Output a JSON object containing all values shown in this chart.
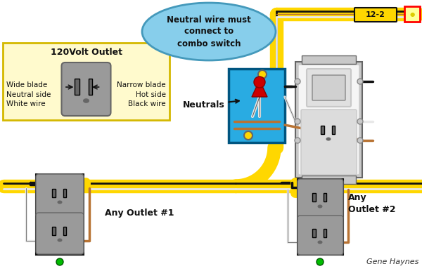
{
  "bg_color": "#ffffff",
  "legend_box_color": "#fffacd",
  "legend_box_title": "120Volt Outlet",
  "callout_text": "Neutral wire must\nconnect to\ncombo switch",
  "neutrals_label": "Neutrals",
  "wire_12_2_label": "12-2",
  "outlet1_label": "Any Outlet #1",
  "outlet2_label": "Any\nOutlet #2",
  "credit": "Gene Haynes",
  "yellow": "#FFD700",
  "black": "#111111",
  "white_wire": "#e8e8e8",
  "copper": "#B87333",
  "red_cap": "#CC0000",
  "blue_box": "#29ABE2",
  "gray": "#888888",
  "dark_gray": "#666666",
  "light_gray": "#C8C8C8",
  "outlet_gray": "#9A9A9A",
  "green": "#00BB00",
  "sw_white": "#F5F5F5"
}
